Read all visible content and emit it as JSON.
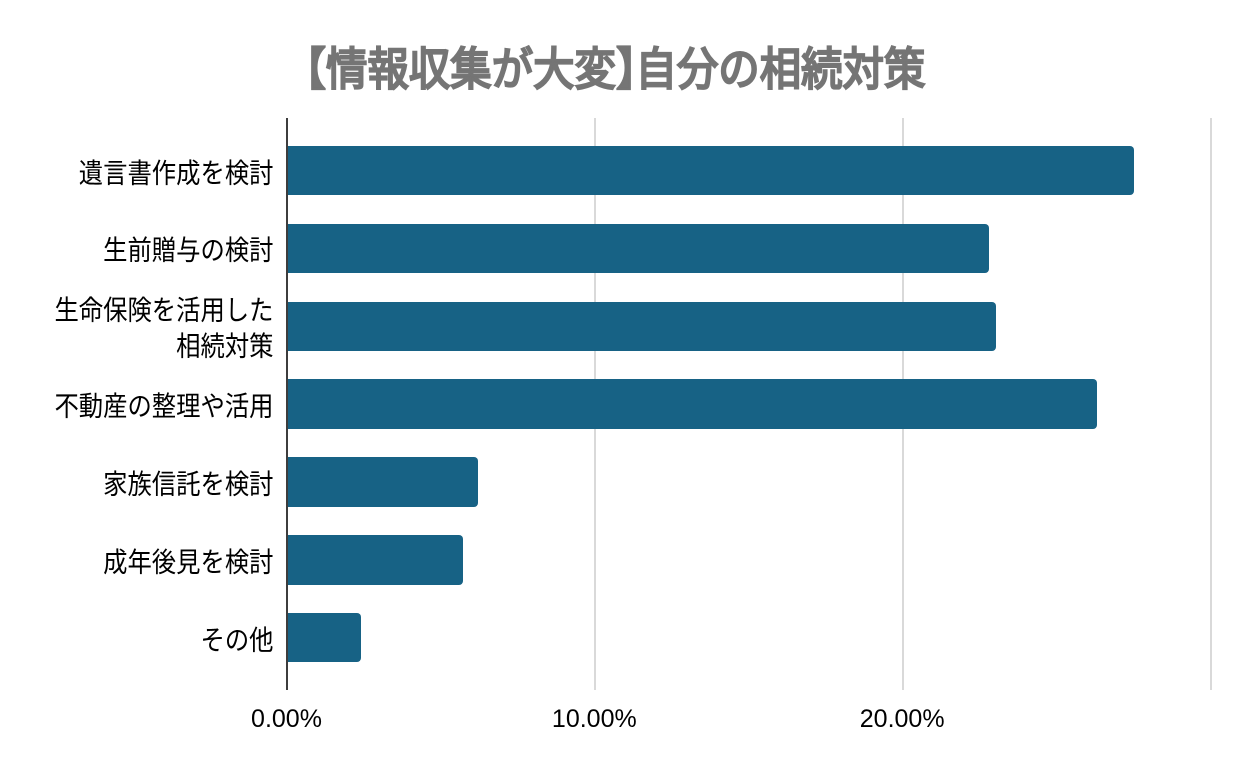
{
  "chart_data": {
    "type": "bar",
    "orientation": "horizontal",
    "title": "【情報収集が大変】自分の相続対策",
    "categories": [
      "遺言書作成を検討",
      "生前贈与の検討",
      "生命保険を活用した\n相続対策",
      "不動産の整理や活用",
      "家族信託を検討",
      "成年後見を検討",
      "その他"
    ],
    "values": [
      27.5,
      22.8,
      23.0,
      26.3,
      6.2,
      5.7,
      2.4
    ],
    "unit": "%",
    "xlabel": "",
    "ylabel": "",
    "xlim": [
      0,
      30
    ],
    "x_ticks": [
      {
        "value": 0,
        "label": "0.00%"
      },
      {
        "value": 10,
        "label": "10.00%"
      },
      {
        "value": 20,
        "label": "20.00%"
      }
    ],
    "x_gridlines": [
      10,
      20,
      30
    ],
    "grid": true,
    "legend": false,
    "colors": {
      "bar": "#176285",
      "axis_line": "#3d3d3d",
      "gridline": "#d9d9d9",
      "title_text": "#757575",
      "category_text": "#000000",
      "tick_text": "#000000",
      "background": "#ffffff"
    }
  }
}
